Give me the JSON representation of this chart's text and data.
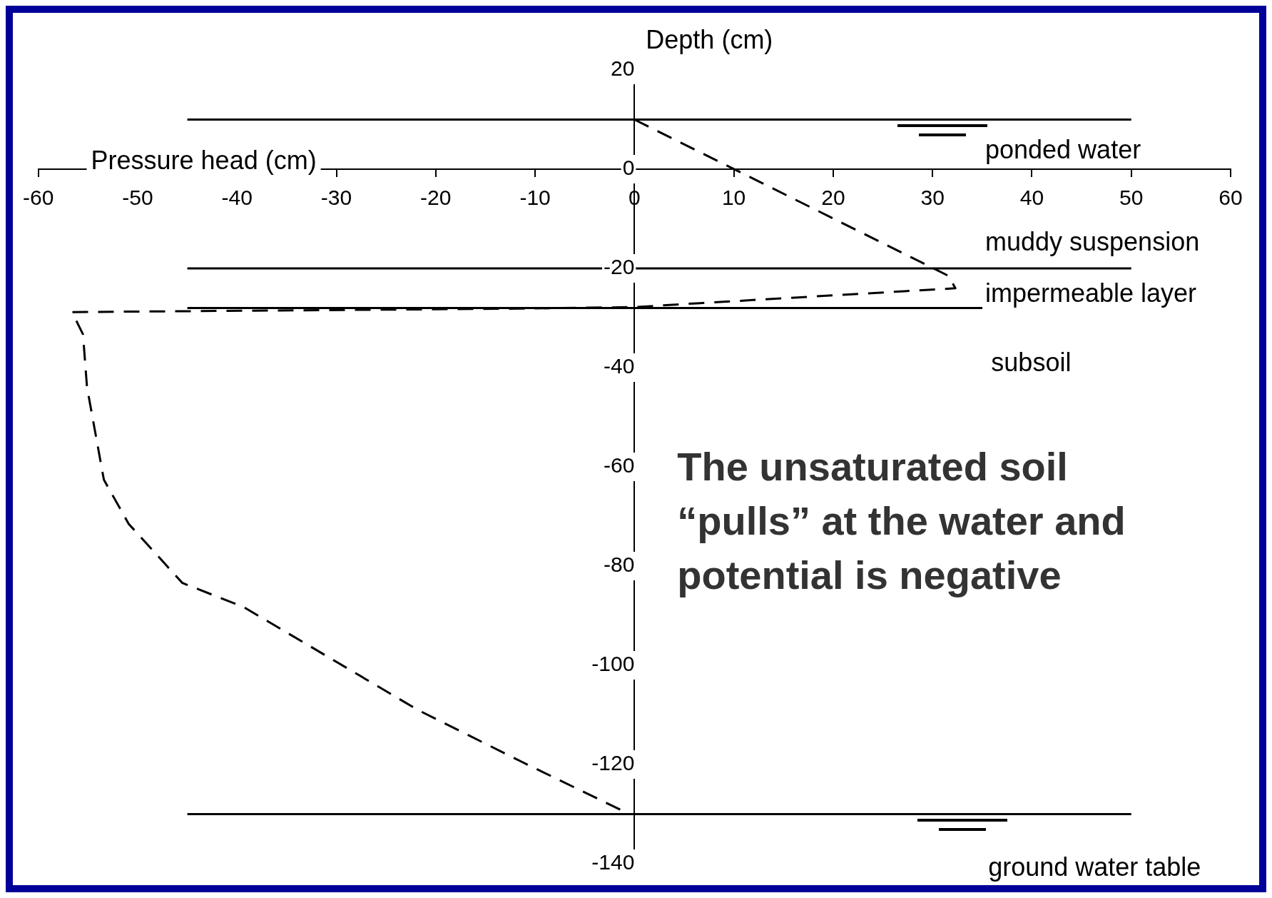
{
  "chart_data": {
    "type": "line",
    "xlabel": "Pressure head (cm)",
    "ylabel": "Depth (cm)",
    "xlim": [
      -60,
      60
    ],
    "xticks": [
      -60,
      -50,
      -40,
      -30,
      -20,
      -10,
      0,
      10,
      20,
      30,
      40,
      50,
      60
    ],
    "ylim": [
      -140,
      20
    ],
    "yticks": [
      20,
      0,
      -20,
      -40,
      -60,
      -80,
      -100,
      -120,
      -140
    ],
    "x": [
      0,
      31.6,
      32.3,
      6.6,
      0,
      -11.3,
      -56.6,
      -55.5,
      -55.1,
      -53.4,
      -50.9,
      -45.5,
      -39.3,
      -21.8,
      -11.3,
      -0.5
    ],
    "series": [
      {
        "color": "#000000",
        "values": [
          10,
          -21.5,
          -24,
          -27,
          -27.8,
          -28.1,
          -28.8,
          -33.3,
          -43.9,
          -62.6,
          -71.5,
          -83.4,
          -88.3,
          -109,
          -119.5,
          -130
        ]
      }
    ],
    "line_style": "dashed",
    "marker": "none",
    "grid": false,
    "legend": false,
    "ref_lines": [
      {
        "axis": "y",
        "value": 10,
        "color": "#000000"
      },
      {
        "axis": "y",
        "value": -20,
        "color": "#000000"
      },
      {
        "axis": "y",
        "value": -28,
        "color": "#000000"
      },
      {
        "axis": "y",
        "value": -130,
        "color": "#000000"
      }
    ],
    "annotations": [
      "ponded water",
      "muddy suspension",
      "impermeable layer",
      "subsoil",
      "ground water table",
      "The unsaturated soil “pulls” at the water and potential is negative"
    ]
  }
}
